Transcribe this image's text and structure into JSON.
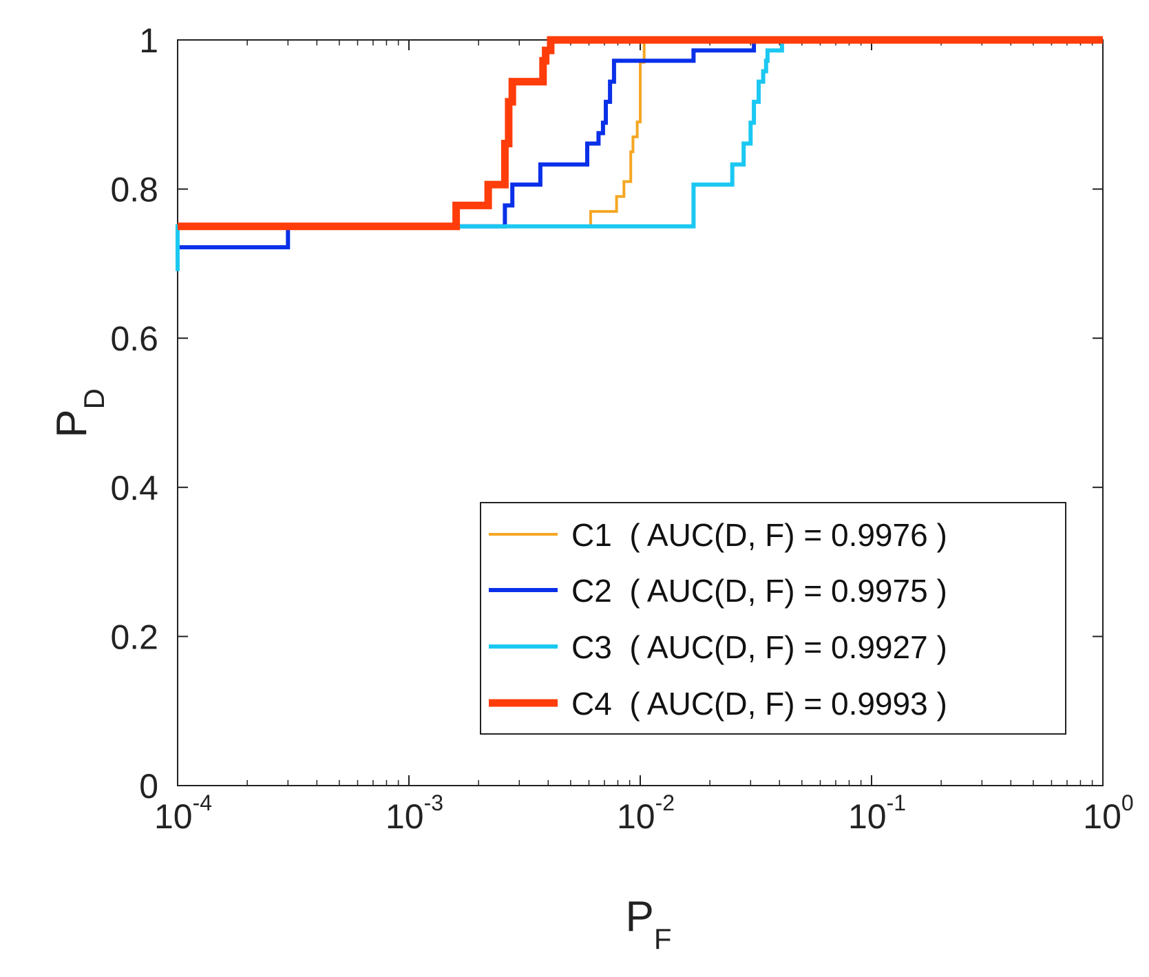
{
  "chart_data": {
    "type": "line",
    "title": "",
    "xscale": "log",
    "xlim": [
      0.0001,
      1
    ],
    "ylim": [
      0,
      1
    ],
    "xlabel": {
      "main": "P",
      "sub": "F"
    },
    "ylabel": {
      "main": "P",
      "sub": "D"
    },
    "x_ticks": [
      {
        "value": 0.0001,
        "base": "10",
        "exp": "-4"
      },
      {
        "value": 0.001,
        "base": "10",
        "exp": "-3"
      },
      {
        "value": 0.01,
        "base": "10",
        "exp": "-2"
      },
      {
        "value": 0.1,
        "base": "10",
        "exp": "-1"
      },
      {
        "value": 1,
        "base": "10",
        "exp": "0"
      }
    ],
    "y_ticks": [
      {
        "value": 0,
        "label": "0"
      },
      {
        "value": 0.2,
        "label": "0.2"
      },
      {
        "value": 0.4,
        "label": "0.4"
      },
      {
        "value": 0.6,
        "label": "0.6"
      },
      {
        "value": 0.8,
        "label": "0.8"
      },
      {
        "value": 1,
        "label": "1"
      }
    ],
    "grid": false,
    "legend_position": "bottom-right",
    "series": [
      {
        "name": "C1",
        "legend_label": "C1  ( AUC(D, F) = 0.9976 )",
        "color": "#F5A623",
        "weight": "thin",
        "x": [
          0.0001,
          0.0061,
          0.0061,
          0.0079,
          0.0079,
          0.0085,
          0.0085,
          0.0091,
          0.0091,
          0.0093,
          0.0093,
          0.0097,
          0.0097,
          0.01,
          0.01,
          0.0104,
          0.0104,
          1
        ],
        "y": [
          0.75,
          0.75,
          0.77,
          0.77,
          0.79,
          0.79,
          0.81,
          0.81,
          0.85,
          0.85,
          0.87,
          0.87,
          0.89,
          0.89,
          0.97,
          0.97,
          1,
          1
        ]
      },
      {
        "name": "C2",
        "legend_label": "C2  ( AUC(D, F) = 0.9975 )",
        "color": "#0A30E8",
        "weight": "medium",
        "x": [
          0.0001,
          0.0003,
          0.0003,
          0.0026,
          0.0026,
          0.0028,
          0.0028,
          0.0037,
          0.0037,
          0.0059,
          0.0059,
          0.0066,
          0.0066,
          0.0069,
          0.0069,
          0.0071,
          0.0071,
          0.0074,
          0.0074,
          0.0077,
          0.0077,
          0.017,
          0.017,
          0.031,
          0.031,
          1
        ],
        "y": [
          0.722,
          0.722,
          0.75,
          0.75,
          0.778,
          0.778,
          0.806,
          0.806,
          0.833,
          0.833,
          0.861,
          0.861,
          0.875,
          0.875,
          0.889,
          0.889,
          0.917,
          0.917,
          0.944,
          0.944,
          0.972,
          0.972,
          0.986,
          0.986,
          1,
          1
        ]
      },
      {
        "name": "C3",
        "legend_label": "C3  ( AUC(D, F) = 0.9927 )",
        "color": "#1BC8F2",
        "weight": "medium",
        "x": [
          0.0001,
          0.0001,
          0.0001,
          0.017,
          0.017,
          0.025,
          0.025,
          0.028,
          0.028,
          0.03,
          0.03,
          0.031,
          0.031,
          0.0325,
          0.0325,
          0.034,
          0.034,
          0.035,
          0.035,
          0.0355,
          0.0355,
          0.041,
          0.041,
          1
        ],
        "y": [
          0.69,
          0.75,
          0.75,
          0.75,
          0.806,
          0.806,
          0.833,
          0.833,
          0.861,
          0.861,
          0.889,
          0.889,
          0.917,
          0.917,
          0.944,
          0.944,
          0.958,
          0.958,
          0.972,
          0.972,
          0.986,
          0.986,
          1,
          1
        ]
      },
      {
        "name": "C4",
        "legend_label": "C4  ( AUC(D, F) = 0.9993 )",
        "color": "#FF3D0A",
        "weight": "thick",
        "x": [
          0.0001,
          0.0016,
          0.0016,
          0.0022,
          0.0022,
          0.0026,
          0.0026,
          0.0027,
          0.0027,
          0.0028,
          0.0028,
          0.0038,
          0.0038,
          0.0039,
          0.0039,
          0.0041,
          0.0041,
          1
        ],
        "y": [
          0.75,
          0.75,
          0.778,
          0.778,
          0.806,
          0.806,
          0.861,
          0.861,
          0.917,
          0.917,
          0.944,
          0.944,
          0.972,
          0.972,
          0.986,
          0.986,
          1,
          1
        ]
      }
    ]
  }
}
